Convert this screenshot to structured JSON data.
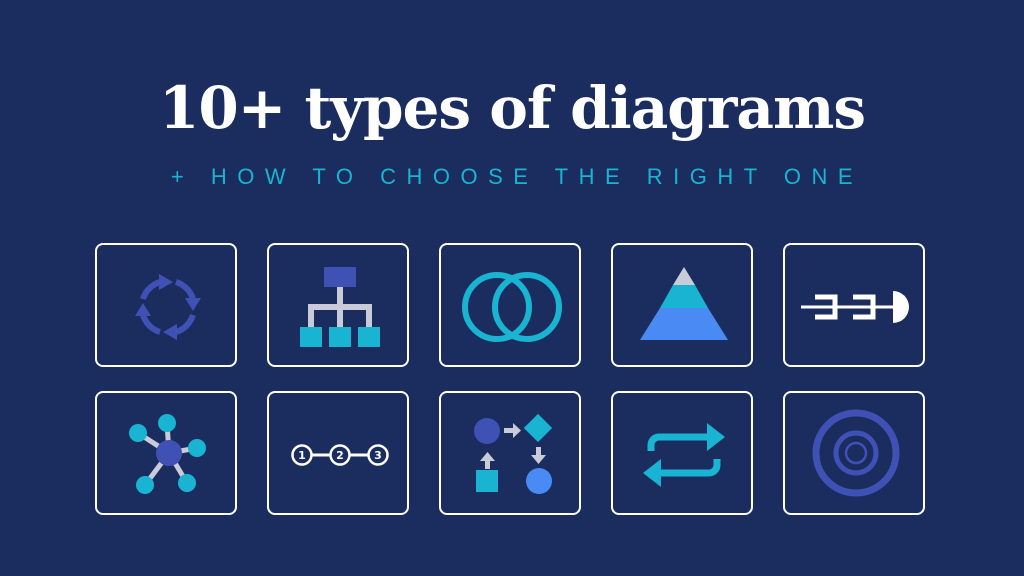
{
  "header": {
    "title": "10+ types of diagrams",
    "subtitle": "+ HOW TO CHOOSE THE RIGHT ONE"
  },
  "icons": [
    {
      "name": "cycle-icon"
    },
    {
      "name": "org-chart-icon"
    },
    {
      "name": "venn-icon"
    },
    {
      "name": "pyramid-icon"
    },
    {
      "name": "fishbone-icon"
    },
    {
      "name": "network-icon"
    },
    {
      "name": "timeline-icon",
      "labels": [
        "1",
        "2",
        "3"
      ]
    },
    {
      "name": "flowchart-icon"
    },
    {
      "name": "loop-arrows-icon"
    },
    {
      "name": "target-icon"
    }
  ],
  "colors": {
    "background": "#1b2d5e",
    "title": "#ffffff",
    "accent_teal": "#18b4d2",
    "indigo": "#4051b5",
    "light_blue": "#4a8af4",
    "gray": "#c9ccd8"
  }
}
